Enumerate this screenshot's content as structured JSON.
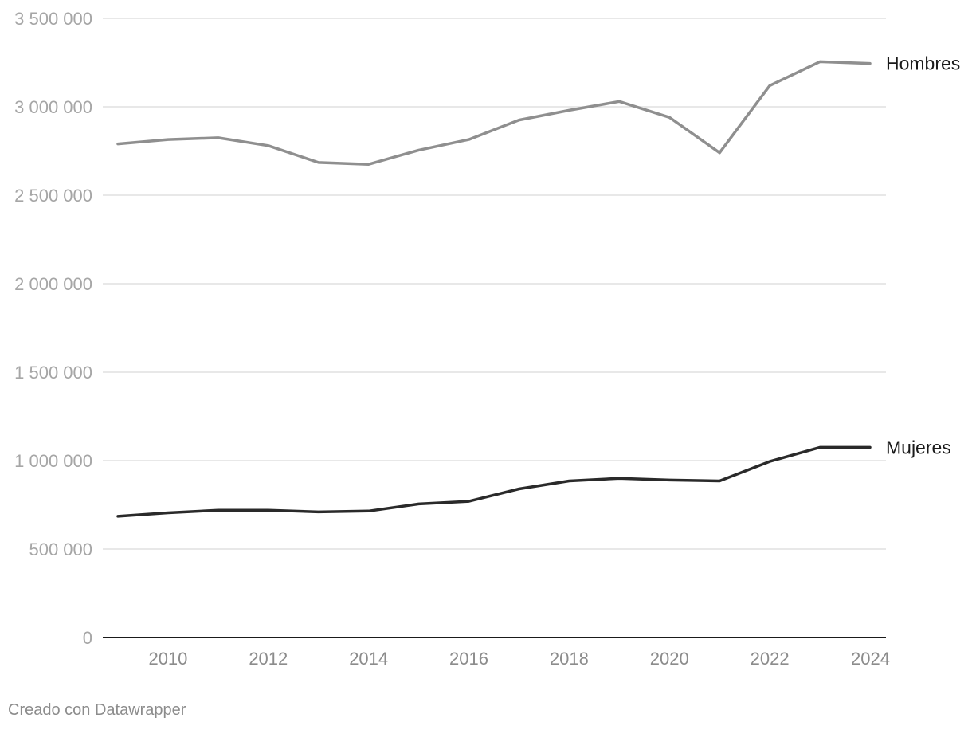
{
  "chart_data": {
    "type": "line",
    "title": "",
    "xlabel": "",
    "ylabel": "",
    "x": [
      2009,
      2010,
      2011,
      2012,
      2013,
      2014,
      2015,
      2016,
      2017,
      2018,
      2019,
      2020,
      2021,
      2022,
      2023,
      2024
    ],
    "x_ticks": [
      "2010",
      "2012",
      "2014",
      "2016",
      "2018",
      "2020",
      "2022",
      "2024"
    ],
    "x_tick_values": [
      2010,
      2012,
      2014,
      2016,
      2018,
      2020,
      2022,
      2024
    ],
    "xlim": [
      2009,
      2024
    ],
    "ylim": [
      0,
      3500000
    ],
    "y_ticks": [
      {
        "value": 0,
        "label": "0"
      },
      {
        "value": 500000,
        "label": "500 000"
      },
      {
        "value": 1000000,
        "label": "1 000 000"
      },
      {
        "value": 1500000,
        "label": "1 500 000"
      },
      {
        "value": 2000000,
        "label": "2 000 000"
      },
      {
        "value": 2500000,
        "label": "2 500 000"
      },
      {
        "value": 3000000,
        "label": "3 000 000"
      },
      {
        "value": 3500000,
        "label": "3 500 000"
      }
    ],
    "grid": true,
    "legend": "direct labels at line ends",
    "series": [
      {
        "name": "Hombres",
        "color": "#8f8f8f",
        "values": [
          2790000,
          2815000,
          2825000,
          2780000,
          2685000,
          2675000,
          2755000,
          2815000,
          2925000,
          2980000,
          3030000,
          2940000,
          2740000,
          3120000,
          3255000,
          3245000
        ]
      },
      {
        "name": "Mujeres",
        "color": "#2a2a2a",
        "values": [
          685000,
          705000,
          720000,
          720000,
          710000,
          715000,
          755000,
          770000,
          840000,
          885000,
          900000,
          890000,
          885000,
          995000,
          1075000,
          1075000
        ]
      }
    ]
  },
  "footer": {
    "credit": "Creado con Datawrapper"
  },
  "colors": {
    "grid": "#e0e0e0",
    "axis": "#1a1a1a",
    "tick_text": "#a6a6a6",
    "credit_text": "#8c8c8c"
  }
}
